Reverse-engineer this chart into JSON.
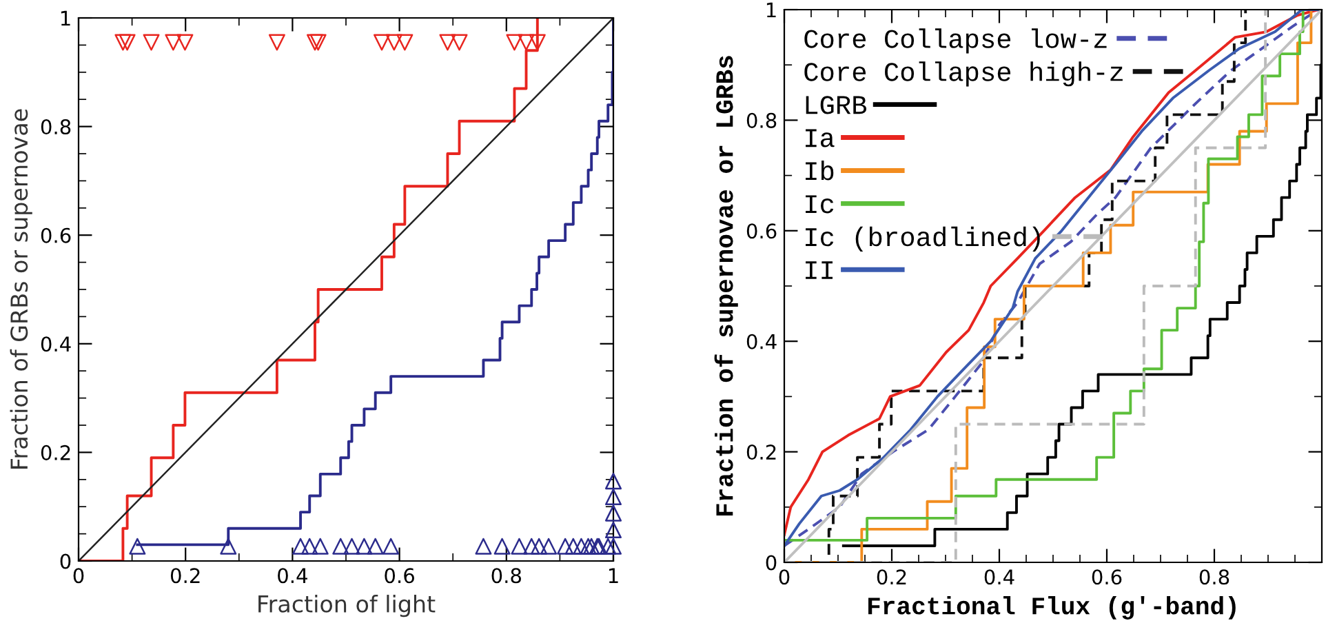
{
  "chart_data": [
    {
      "type": "line",
      "xlabel": "Fraction of light",
      "ylabel": "Fraction of GRBs or supernovae",
      "xlim": [
        0,
        1
      ],
      "ylim": [
        0,
        1
      ],
      "xticks": [
        0,
        0.2,
        0.4,
        0.6,
        0.8,
        1
      ],
      "yticks": [
        0,
        0.2,
        0.4,
        0.6,
        0.8,
        1
      ],
      "grid": false,
      "legend": false,
      "series": [
        {
          "type": "step",
          "color": "#e8251f",
          "x": [
            0,
            0.083,
            0.091,
            0.136,
            0.177,
            0.199,
            0.371,
            0.442,
            0.448,
            0.567,
            0.59,
            0.61,
            0.69,
            0.712,
            0.815,
            0.837,
            0.858
          ],
          "values": [
            0,
            0.06,
            0.12,
            0.19,
            0.25,
            0.31,
            0.37,
            0.44,
            0.5,
            0.56,
            0.62,
            0.69,
            0.75,
            0.81,
            0.87,
            0.94,
            1.0
          ]
        },
        {
          "type": "step",
          "color": "#2b2b8c",
          "x": [
            0.11,
            0.28,
            0.415,
            0.432,
            0.452,
            0.49,
            0.505,
            0.511,
            0.534,
            0.555,
            0.584,
            0.757,
            0.788,
            0.792,
            0.824,
            0.847,
            0.857,
            0.861,
            0.879,
            0.91,
            0.925,
            0.94,
            0.953,
            0.959,
            0.97,
            0.973,
            0.99,
            0.998,
            1.0
          ],
          "values": [
            0.03,
            0.06,
            0.09,
            0.12,
            0.16,
            0.19,
            0.22,
            0.25,
            0.28,
            0.31,
            0.34,
            0.37,
            0.41,
            0.44,
            0.47,
            0.5,
            0.53,
            0.56,
            0.59,
            0.62,
            0.66,
            0.69,
            0.72,
            0.75,
            0.78,
            0.81,
            0.84,
            0.9,
            1.0
          ]
        },
        {
          "color": "#222222",
          "x": [
            0,
            1
          ],
          "values": [
            0,
            1
          ]
        },
        {
          "type": "scatter",
          "color": "#e8251f",
          "marker": "triangle",
          "x": [
            0.083,
            0.091,
            0.136,
            0.177,
            0.199,
            0.371,
            0.442,
            0.448,
            0.567,
            0.59,
            0.61,
            0.69,
            0.712,
            0.815,
            0.837,
            0.858
          ],
          "values": [
            0.955,
            0.955,
            0.955,
            0.955,
            0.955,
            0.955,
            0.955,
            0.955,
            0.955,
            0.955,
            0.955,
            0.955,
            0.955,
            0.955,
            0.955,
            0.955
          ]
        },
        {
          "type": "scatter",
          "color": "#2b2b8c",
          "marker": "triangle",
          "x": [
            0.11,
            0.28,
            0.415,
            0.432,
            0.452,
            0.49,
            0.511,
            0.534,
            0.555,
            0.584,
            0.757,
            0.792,
            0.824,
            0.847,
            0.861,
            0.879,
            0.91,
            0.925,
            0.94,
            0.953,
            0.959,
            0.97,
            0.973,
            0.99,
            1.0,
            1.0,
            1.0,
            1.0,
            1.0
          ],
          "values": [
            0.027,
            0.027,
            0.027,
            0.027,
            0.027,
            0.027,
            0.027,
            0.027,
            0.027,
            0.027,
            0.027,
            0.027,
            0.027,
            0.027,
            0.027,
            0.027,
            0.027,
            0.027,
            0.027,
            0.027,
            0.027,
            0.027,
            0.027,
            0.027,
            0.027,
            0.057,
            0.088,
            0.118,
            0.147
          ]
        }
      ]
    },
    {
      "type": "line",
      "xlabel": "Fractional Flux (g′-band)",
      "ylabel": "Fraction of supernovae or LGRBs",
      "xlim": [
        0,
        1
      ],
      "ylim": [
        0,
        1
      ],
      "xticks": [
        0,
        0.2,
        0.4,
        0.6,
        0.8
      ],
      "yticks": [
        0,
        0.2,
        0.4,
        0.6,
        0.8,
        1
      ],
      "grid": false,
      "legend": "top left",
      "series": [
        {
          "name": "Core Collapse low-z",
          "color": "#4b4fb0",
          "line_style": "dashed",
          "x": [
            0,
            0.045,
            0.103,
            0.144,
            0.202,
            0.268,
            0.318,
            0.367,
            0.4,
            0.434,
            0.475,
            0.533,
            0.582,
            0.616,
            0.682,
            0.765,
            0.831,
            0.889,
            0.946,
            0.993,
            1.0
          ],
          "values": [
            0.03,
            0.06,
            0.1,
            0.16,
            0.2,
            0.24,
            0.3,
            0.36,
            0.43,
            0.47,
            0.54,
            0.58,
            0.63,
            0.66,
            0.75,
            0.83,
            0.89,
            0.93,
            0.97,
            1.0,
            1.0
          ]
        },
        {
          "type": "step",
          "name": "Core Collapse high-z",
          "color": "#111111",
          "line_style": "dashed",
          "x": [
            0,
            0.083,
            0.091,
            0.136,
            0.177,
            0.199,
            0.371,
            0.442,
            0.448,
            0.567,
            0.59,
            0.61,
            0.69,
            0.712,
            0.815,
            0.837,
            0.858
          ],
          "values": [
            0,
            0.06,
            0.12,
            0.19,
            0.25,
            0.31,
            0.37,
            0.44,
            0.5,
            0.56,
            0.62,
            0.69,
            0.75,
            0.81,
            0.87,
            0.94,
            1.0
          ]
        },
        {
          "type": "step",
          "name": "LGRB",
          "color": "#000000",
          "x": [
            0.11,
            0.28,
            0.415,
            0.432,
            0.452,
            0.49,
            0.505,
            0.511,
            0.534,
            0.555,
            0.584,
            0.757,
            0.788,
            0.792,
            0.824,
            0.847,
            0.857,
            0.861,
            0.879,
            0.91,
            0.925,
            0.94,
            0.953,
            0.959,
            0.97,
            0.973,
            0.99,
            0.998,
            1.0
          ],
          "values": [
            0.03,
            0.06,
            0.09,
            0.12,
            0.16,
            0.19,
            0.22,
            0.25,
            0.28,
            0.31,
            0.34,
            0.37,
            0.41,
            0.44,
            0.47,
            0.5,
            0.53,
            0.56,
            0.59,
            0.62,
            0.66,
            0.69,
            0.72,
            0.75,
            0.78,
            0.81,
            0.84,
            0.9,
            1.0
          ]
        },
        {
          "name": "Ia",
          "color": "#e8251f",
          "x": [
            0,
            0.012,
            0.045,
            0.071,
            0.119,
            0.177,
            0.197,
            0.252,
            0.301,
            0.343,
            0.371,
            0.384,
            0.434,
            0.483,
            0.541,
            0.607,
            0.649,
            0.715,
            0.765,
            0.839,
            0.897,
            0.955,
            0.993,
            1.0
          ],
          "values": [
            0.05,
            0.1,
            0.15,
            0.2,
            0.23,
            0.26,
            0.3,
            0.32,
            0.38,
            0.42,
            0.47,
            0.5,
            0.55,
            0.6,
            0.66,
            0.71,
            0.77,
            0.85,
            0.89,
            0.95,
            0.96,
            0.99,
            1.0,
            1.0
          ]
        },
        {
          "type": "step",
          "name": "Ib",
          "color": "#f28c1e",
          "x": [
            0,
            0.144,
            0.266,
            0.311,
            0.34,
            0.372,
            0.392,
            0.446,
            0.556,
            0.607,
            0.649,
            0.788,
            0.847,
            0.897,
            0.955,
            0.98
          ],
          "values": [
            0,
            0.06,
            0.11,
            0.17,
            0.28,
            0.39,
            0.44,
            0.5,
            0.56,
            0.61,
            0.67,
            0.72,
            0.78,
            0.83,
            0.94,
            1.0
          ]
        },
        {
          "type": "step",
          "name": "Ic",
          "color": "#5cbf3a",
          "x": [
            0,
            0.154,
            0.319,
            0.394,
            0.581,
            0.613,
            0.644,
            0.669,
            0.702,
            0.731,
            0.765,
            0.772,
            0.78,
            0.789,
            0.843,
            0.864,
            0.889,
            0.922,
            0.959,
            0.965
          ],
          "values": [
            0.04,
            0.08,
            0.12,
            0.15,
            0.19,
            0.27,
            0.31,
            0.35,
            0.42,
            0.46,
            0.5,
            0.58,
            0.65,
            0.73,
            0.77,
            0.81,
            0.88,
            0.92,
            0.96,
            1.0
          ]
        },
        {
          "type": "step",
          "name": "Ic (broadlined)",
          "color": "#bbbbbb",
          "line_style": "dashed",
          "x": [
            0,
            0.319,
            0.669,
            0.765,
            0.895
          ],
          "values": [
            0,
            0.25,
            0.5,
            0.75,
            1.0
          ]
        },
        {
          "name": "II",
          "color": "#3a5bb0",
          "x": [
            0,
            0.028,
            0.069,
            0.103,
            0.136,
            0.185,
            0.235,
            0.285,
            0.334,
            0.384,
            0.425,
            0.434,
            0.467,
            0.516,
            0.574,
            0.616,
            0.665,
            0.723,
            0.79,
            0.847,
            0.913,
            0.963,
            0.993,
            1.0
          ],
          "values": [
            0.03,
            0.07,
            0.12,
            0.13,
            0.15,
            0.19,
            0.24,
            0.3,
            0.35,
            0.4,
            0.46,
            0.49,
            0.55,
            0.6,
            0.67,
            0.72,
            0.78,
            0.84,
            0.89,
            0.93,
            0.96,
            1.0,
            1.0,
            1.0
          ]
        },
        {
          "color": "#c0c0c0",
          "x": [
            0,
            1
          ],
          "values": [
            0,
            1
          ]
        }
      ]
    }
  ]
}
